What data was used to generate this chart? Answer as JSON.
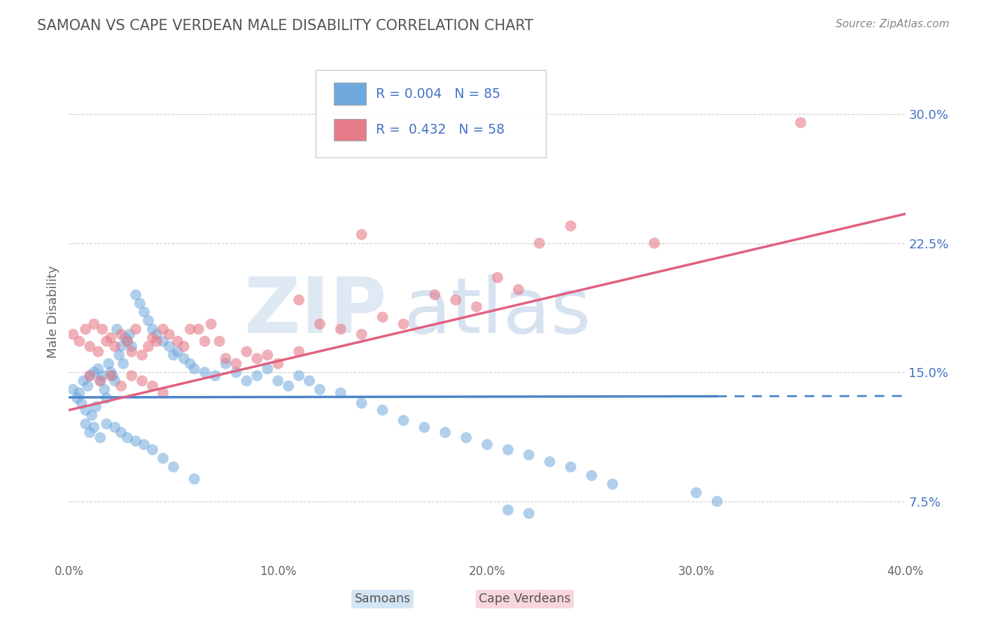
{
  "title": "SAMOAN VS CAPE VERDEAN MALE DISABILITY CORRELATION CHART",
  "source": "Source: ZipAtlas.com",
  "xlabel_label": "Samoans",
  "xlabel_label2": "Cape Verdeans",
  "ylabel": "Male Disability",
  "xlim": [
    0.0,
    0.4
  ],
  "ylim": [
    0.04,
    0.33
  ],
  "xticks": [
    0.0,
    0.1,
    0.2,
    0.3,
    0.4
  ],
  "xtick_labels": [
    "0.0%",
    "10.0%",
    "20.0%",
    "30.0%",
    "40.0%"
  ],
  "yticks_right": [
    0.075,
    0.15,
    0.225,
    0.3
  ],
  "ytick_labels_right": [
    "7.5%",
    "15.0%",
    "22.5%",
    "30.0%"
  ],
  "samoan_color": "#6fa8dc",
  "capeverdean_color": "#e67c8a",
  "samoan_line_color": "#4a86c8",
  "capeverdean_line_color": "#e06080",
  "R_samoan": 0.004,
  "N_samoan": 85,
  "R_capeverdean": 0.432,
  "N_capeverdean": 58,
  "legend_text_color": "#4472c4",
  "samoan_x": [
    0.002,
    0.004,
    0.005,
    0.006,
    0.007,
    0.008,
    0.009,
    0.01,
    0.011,
    0.012,
    0.013,
    0.014,
    0.015,
    0.016,
    0.017,
    0.018,
    0.019,
    0.02,
    0.021,
    0.022,
    0.023,
    0.024,
    0.025,
    0.026,
    0.027,
    0.028,
    0.029,
    0.03,
    0.032,
    0.034,
    0.036,
    0.038,
    0.04,
    0.042,
    0.045,
    0.048,
    0.05,
    0.052,
    0.055,
    0.058,
    0.06,
    0.065,
    0.07,
    0.075,
    0.08,
    0.085,
    0.09,
    0.095,
    0.1,
    0.105,
    0.11,
    0.115,
    0.12,
    0.13,
    0.14,
    0.15,
    0.16,
    0.17,
    0.18,
    0.19,
    0.2,
    0.21,
    0.22,
    0.23,
    0.24,
    0.25,
    0.26,
    0.3,
    0.31,
    0.008,
    0.01,
    0.012,
    0.015,
    0.018,
    0.022,
    0.025,
    0.028,
    0.032,
    0.036,
    0.04,
    0.045,
    0.05,
    0.06,
    0.21,
    0.22
  ],
  "samoan_y": [
    0.14,
    0.135,
    0.138,
    0.132,
    0.145,
    0.128,
    0.142,
    0.148,
    0.125,
    0.15,
    0.13,
    0.152,
    0.145,
    0.148,
    0.14,
    0.135,
    0.155,
    0.15,
    0.148,
    0.145,
    0.175,
    0.16,
    0.165,
    0.155,
    0.17,
    0.168,
    0.172,
    0.165,
    0.195,
    0.19,
    0.185,
    0.18,
    0.175,
    0.172,
    0.168,
    0.165,
    0.16,
    0.162,
    0.158,
    0.155,
    0.152,
    0.15,
    0.148,
    0.155,
    0.15,
    0.145,
    0.148,
    0.152,
    0.145,
    0.142,
    0.148,
    0.145,
    0.14,
    0.138,
    0.132,
    0.128,
    0.122,
    0.118,
    0.115,
    0.112,
    0.108,
    0.105,
    0.102,
    0.098,
    0.095,
    0.09,
    0.085,
    0.08,
    0.075,
    0.12,
    0.115,
    0.118,
    0.112,
    0.12,
    0.118,
    0.115,
    0.112,
    0.11,
    0.108,
    0.105,
    0.1,
    0.095,
    0.088,
    0.07,
    0.068
  ],
  "capeverdean_x": [
    0.002,
    0.005,
    0.008,
    0.01,
    0.012,
    0.014,
    0.016,
    0.018,
    0.02,
    0.022,
    0.025,
    0.028,
    0.03,
    0.032,
    0.035,
    0.038,
    0.04,
    0.042,
    0.045,
    0.048,
    0.052,
    0.055,
    0.058,
    0.062,
    0.065,
    0.068,
    0.072,
    0.075,
    0.08,
    0.085,
    0.09,
    0.095,
    0.1,
    0.11,
    0.12,
    0.13,
    0.14,
    0.15,
    0.16,
    0.175,
    0.185,
    0.195,
    0.205,
    0.215,
    0.225,
    0.24,
    0.28,
    0.01,
    0.015,
    0.02,
    0.025,
    0.03,
    0.035,
    0.04,
    0.045,
    0.11,
    0.14,
    0.35
  ],
  "capeverdean_y": [
    0.172,
    0.168,
    0.175,
    0.165,
    0.178,
    0.162,
    0.175,
    0.168,
    0.17,
    0.165,
    0.172,
    0.168,
    0.162,
    0.175,
    0.16,
    0.165,
    0.17,
    0.168,
    0.175,
    0.172,
    0.168,
    0.165,
    0.175,
    0.175,
    0.168,
    0.178,
    0.168,
    0.158,
    0.155,
    0.162,
    0.158,
    0.16,
    0.155,
    0.162,
    0.178,
    0.175,
    0.172,
    0.182,
    0.178,
    0.195,
    0.192,
    0.188,
    0.205,
    0.198,
    0.225,
    0.235,
    0.225,
    0.148,
    0.145,
    0.148,
    0.142,
    0.148,
    0.145,
    0.142,
    0.138,
    0.192,
    0.23,
    0.295
  ]
}
